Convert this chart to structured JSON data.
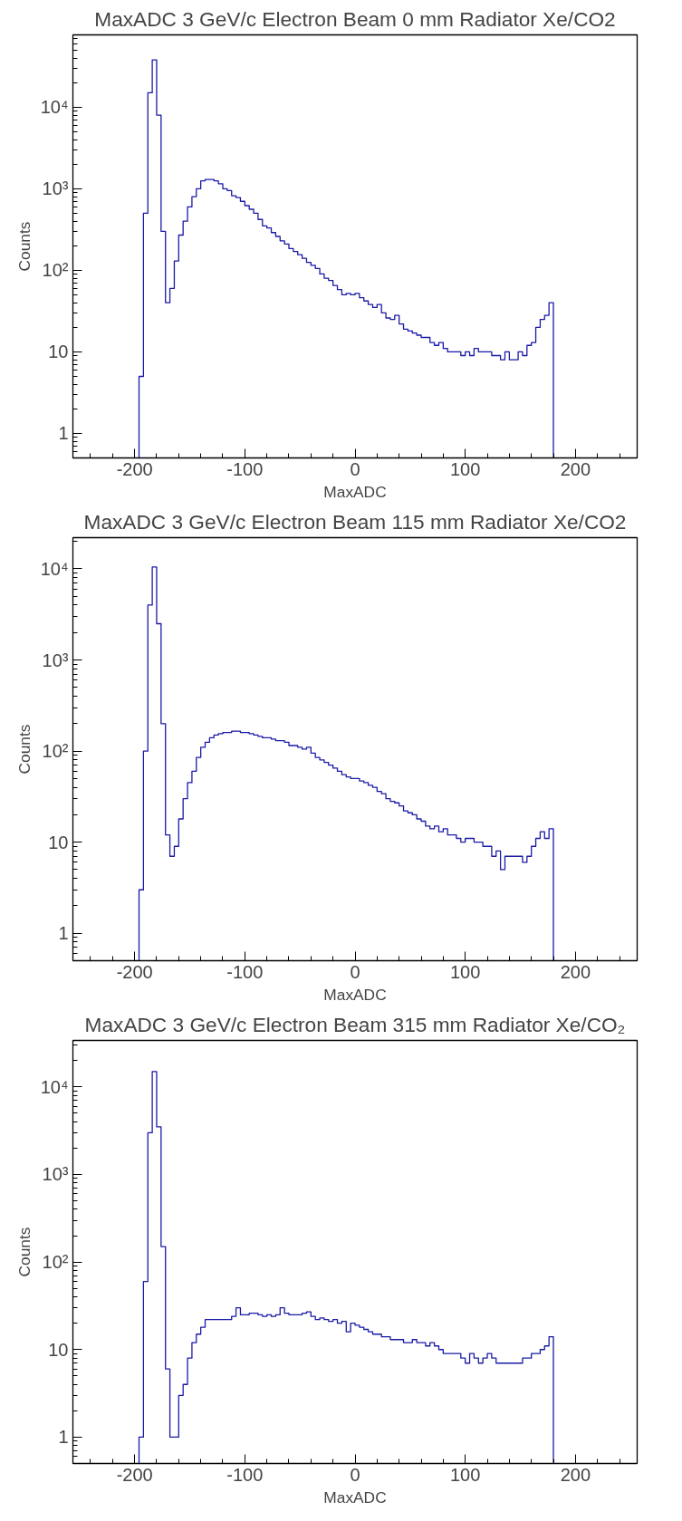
{
  "chart_data": [
    {
      "type": "histogram",
      "title": "MaxADC 3 GeV/c Electron Beam 0 mm Radiator Xe/CO2",
      "xlabel": "MaxADC",
      "ylabel": "Counts",
      "log": "y",
      "grid": false,
      "xlim": [
        -256,
        256
      ],
      "xticks": [
        -200,
        -100,
        0,
        100,
        200
      ],
      "ylim": [
        0.5,
        77000
      ],
      "yticks": [
        1,
        10,
        {
          "value": 100,
          "label": "10²"
        },
        {
          "value": 1000,
          "label": "10³"
        },
        {
          "value": 10000,
          "label": "10⁴"
        }
      ],
      "bins": [
        -196,
        -192,
        -188,
        -184,
        -180,
        -176,
        -172,
        -168,
        -164,
        -160,
        -156,
        -152,
        -148,
        -144,
        -140,
        -136,
        -132,
        -128,
        -124,
        -120,
        -116,
        -112,
        -108,
        -104,
        -100,
        -96,
        -92,
        -88,
        -84,
        -80,
        -76,
        -72,
        -68,
        -64,
        -60,
        -56,
        -52,
        -48,
        -44,
        -40,
        -36,
        -32,
        -28,
        -24,
        -20,
        -16,
        -12,
        -8,
        -4,
        0,
        4,
        8,
        12,
        16,
        20,
        24,
        28,
        32,
        36,
        40,
        44,
        48,
        52,
        56,
        60,
        64,
        68,
        72,
        76,
        80,
        84,
        88,
        92,
        96,
        100,
        104,
        108,
        112,
        116,
        120,
        124,
        128,
        132,
        136,
        140,
        144,
        148,
        152,
        156,
        160,
        164,
        168,
        172,
        176,
        180
      ],
      "series": [
        {
          "color": "#1a1aa6",
          "values": [
            5,
            500,
            15000,
            38000,
            8000,
            300,
            40,
            60,
            130,
            270,
            400,
            600,
            800,
            1000,
            1250,
            1300,
            1300,
            1250,
            1150,
            1000,
            950,
            820,
            780,
            700,
            620,
            560,
            500,
            420,
            350,
            330,
            290,
            260,
            230,
            210,
            185,
            170,
            155,
            140,
            125,
            115,
            105,
            90,
            80,
            75,
            65,
            58,
            50,
            52,
            50,
            52,
            46,
            42,
            38,
            35,
            38,
            30,
            26,
            25,
            28,
            22,
            19,
            18,
            17,
            16,
            15,
            15,
            13,
            12,
            13,
            11,
            10,
            10,
            10,
            9,
            10,
            9,
            11,
            10,
            10,
            10,
            9,
            9,
            8,
            10,
            8,
            8,
            10,
            9,
            12,
            13,
            20,
            25,
            28,
            40
          ]
        }
      ]
    },
    {
      "type": "histogram",
      "title": "MaxADC 3 GeV/c Electron Beam 115 mm Radiator Xe/CO2",
      "xlabel": "MaxADC",
      "ylabel": "Counts",
      "log": "y",
      "grid": false,
      "xlim": [
        -256,
        256
      ],
      "xticks": [
        -200,
        -100,
        0,
        100,
        200
      ],
      "ylim": [
        0.5,
        22000
      ],
      "yticks": [
        1,
        10,
        {
          "value": 100,
          "label": "10²"
        },
        {
          "value": 1000,
          "label": "10³"
        },
        {
          "value": 10000,
          "label": "10⁴"
        }
      ],
      "bins": [
        -196,
        -192,
        -188,
        -184,
        -180,
        -176,
        -172,
        -168,
        -164,
        -160,
        -156,
        -152,
        -148,
        -144,
        -140,
        -136,
        -132,
        -128,
        -124,
        -120,
        -116,
        -112,
        -108,
        -104,
        -100,
        -96,
        -92,
        -88,
        -84,
        -80,
        -76,
        -72,
        -68,
        -64,
        -60,
        -56,
        -52,
        -48,
        -44,
        -40,
        -36,
        -32,
        -28,
        -24,
        -20,
        -16,
        -12,
        -8,
        -4,
        0,
        4,
        8,
        12,
        16,
        20,
        24,
        28,
        32,
        36,
        40,
        44,
        48,
        52,
        56,
        60,
        64,
        68,
        72,
        76,
        80,
        84,
        88,
        92,
        96,
        100,
        104,
        108,
        112,
        116,
        120,
        124,
        128,
        132,
        136,
        140,
        144,
        148,
        152,
        156,
        160,
        164,
        168,
        172,
        176,
        180
      ],
      "series": [
        {
          "color": "#1a1aa6",
          "values": [
            3,
            100,
            4000,
            10500,
            2500,
            200,
            12,
            7,
            9,
            18,
            30,
            45,
            60,
            85,
            110,
            125,
            140,
            150,
            155,
            160,
            160,
            165,
            165,
            160,
            160,
            155,
            150,
            145,
            140,
            140,
            135,
            130,
            130,
            125,
            115,
            115,
            110,
            105,
            110,
            95,
            85,
            80,
            75,
            70,
            65,
            60,
            55,
            52,
            50,
            50,
            47,
            45,
            42,
            40,
            36,
            34,
            30,
            28,
            27,
            25,
            22,
            21,
            20,
            18,
            17,
            15,
            14,
            15,
            13,
            14,
            12,
            12,
            11,
            10,
            11,
            11,
            10,
            10,
            9,
            9,
            7,
            8,
            5,
            7,
            7,
            7,
            7,
            6,
            7,
            9,
            11,
            13,
            11,
            14
          ]
        }
      ]
    },
    {
      "type": "histogram",
      "title": "MaxADC 3 GeV/c Electron Beam 315 mm Radiator Xe/CO₂",
      "xlabel": "MaxADC",
      "ylabel": "Counts",
      "log": "y",
      "grid": false,
      "xlim": [
        -256,
        256
      ],
      "xticks": [
        -200,
        -100,
        0,
        100,
        200
      ],
      "ylim": [
        0.5,
        34000
      ],
      "yticks": [
        1,
        10,
        {
          "value": 100,
          "label": "10²"
        },
        {
          "value": 1000,
          "label": "10³"
        },
        {
          "value": 10000,
          "label": "10⁴"
        }
      ],
      "bins": [
        -196,
        -192,
        -188,
        -184,
        -180,
        -176,
        -172,
        -168,
        -164,
        -160,
        -156,
        -152,
        -148,
        -144,
        -140,
        -136,
        -132,
        -128,
        -124,
        -120,
        -116,
        -112,
        -108,
        -104,
        -100,
        -96,
        -92,
        -88,
        -84,
        -80,
        -76,
        -72,
        -68,
        -64,
        -60,
        -56,
        -52,
        -48,
        -44,
        -40,
        -36,
        -32,
        -28,
        -24,
        -20,
        -16,
        -12,
        -8,
        -4,
        0,
        4,
        8,
        12,
        16,
        20,
        24,
        28,
        32,
        36,
        40,
        44,
        48,
        52,
        56,
        60,
        64,
        68,
        72,
        76,
        80,
        84,
        88,
        92,
        96,
        100,
        104,
        108,
        112,
        116,
        120,
        124,
        128,
        132,
        136,
        140,
        144,
        148,
        152,
        156,
        160,
        164,
        168,
        172,
        176,
        180
      ],
      "series": [
        {
          "color": "#1a1aa6",
          "values": [
            1,
            60,
            3000,
            15000,
            3500,
            150,
            6,
            1,
            1,
            3,
            4,
            8,
            12,
            15,
            18,
            22,
            22,
            22,
            22,
            22,
            22,
            24,
            30,
            25,
            25,
            26,
            26,
            25,
            24,
            25,
            24,
            25,
            30,
            26,
            25,
            25,
            25,
            26,
            27,
            24,
            22,
            23,
            22,
            21,
            22,
            20,
            21,
            16,
            20,
            19,
            18,
            17,
            16,
            15,
            15,
            14,
            14,
            13,
            13,
            13,
            12,
            12,
            13,
            12,
            12,
            11,
            12,
            11,
            10,
            9,
            9,
            9,
            9,
            8,
            7,
            9,
            8,
            7,
            8,
            9,
            8,
            7,
            7,
            7,
            7,
            7,
            7,
            8,
            8,
            9,
            9,
            10,
            11,
            14
          ]
        }
      ]
    }
  ]
}
